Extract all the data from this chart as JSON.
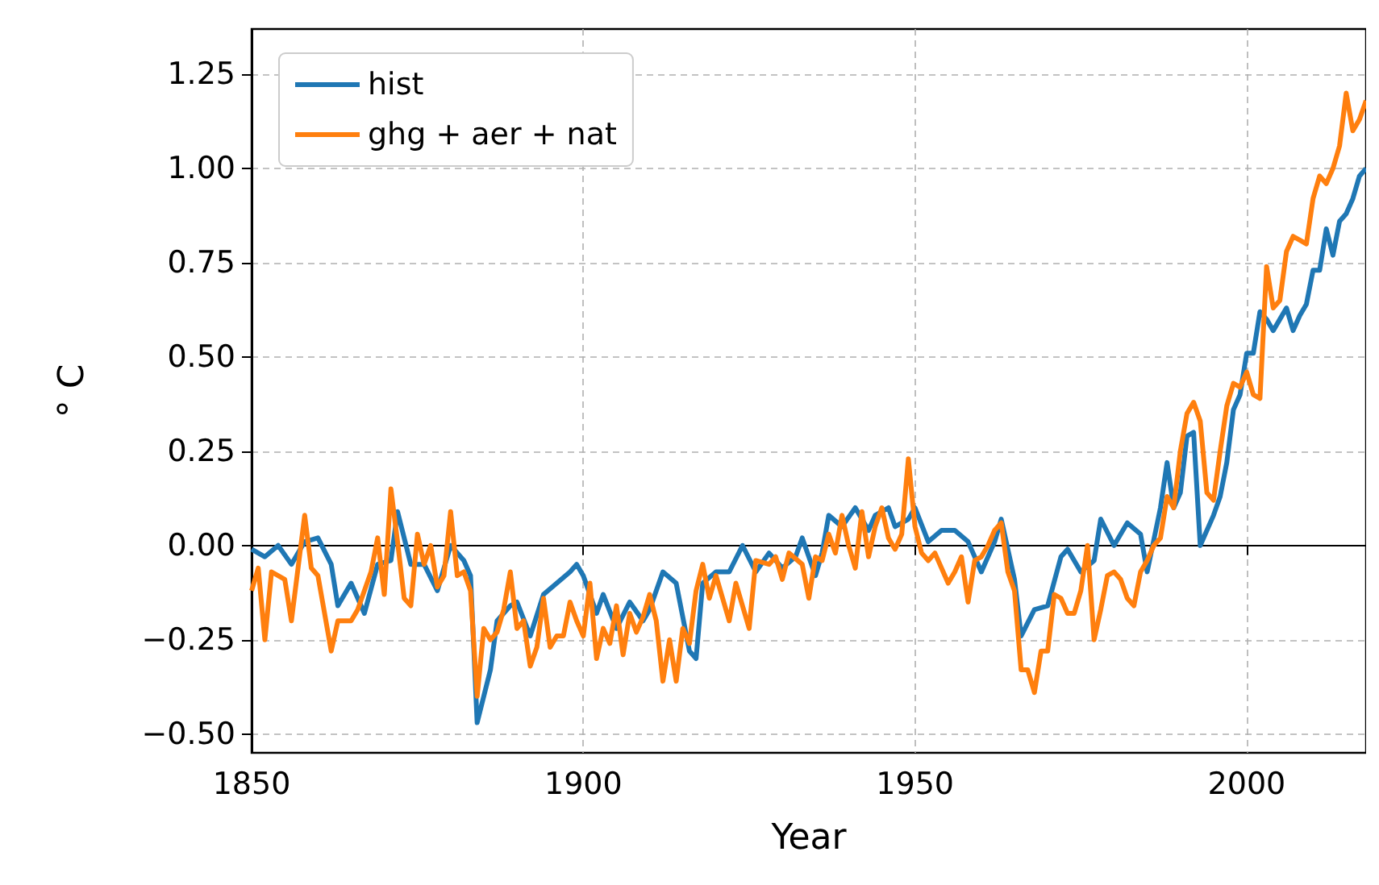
{
  "chart_data": {
    "type": "line",
    "xlabel": "Year",
    "ylabel": "° C",
    "xlim": [
      1850,
      2018
    ],
    "ylim": [
      -0.55,
      1.37
    ],
    "xticks": [
      1850,
      1900,
      1950,
      2000
    ],
    "yticks": [
      {
        "value": -0.5,
        "label": "−0.50"
      },
      {
        "value": -0.25,
        "label": "−0.25"
      },
      {
        "value": 0,
        "label": "0.00"
      },
      {
        "value": 0.25,
        "label": "0.25"
      },
      {
        "value": 0.5,
        "label": "0.50"
      },
      {
        "value": 0.75,
        "label": "0.75"
      },
      {
        "value": 1,
        "label": "1.00"
      },
      {
        "value": 1.25,
        "label": "1.25"
      }
    ],
    "grid": true,
    "legend": "top left",
    "line_style": "solid",
    "marker": "none",
    "series": [
      {
        "name": "hist",
        "color": "#1f77b4",
        "x": [
          1850,
          1852,
          1854,
          1856,
          1858,
          1860,
          1862,
          1863,
          1865,
          1867,
          1869,
          1871,
          1872,
          1874,
          1876,
          1878,
          1880,
          1882,
          1883,
          1884,
          1886,
          1887,
          1889,
          1890,
          1892,
          1894,
          1896,
          1898,
          1899,
          1900,
          1902,
          1903,
          1905,
          1907,
          1909,
          1910,
          1912,
          1914,
          1916,
          1917,
          1918,
          1920,
          1922,
          1924,
          1926,
          1928,
          1930,
          1932,
          1933,
          1935,
          1936,
          1937,
          1939,
          1941,
          1943,
          1944,
          1946,
          1947,
          1949,
          1950,
          1952,
          1954,
          1956,
          1958,
          1960,
          1962,
          1963,
          1965,
          1966,
          1968,
          1970,
          1972,
          1973,
          1975,
          1977,
          1978,
          1980,
          1982,
          1984,
          1985,
          1987,
          1988,
          1989,
          1990,
          1991,
          1992,
          1993,
          1995,
          1996,
          1997,
          1998,
          1999,
          2000,
          2001,
          2002,
          2003,
          2004,
          2005,
          2006,
          2007,
          2008,
          2009,
          2010,
          2011,
          2012,
          2013,
          2014,
          2015,
          2016,
          2017,
          2018
        ],
        "values": [
          -0.01,
          -0.03,
          0.0,
          -0.05,
          0.01,
          0.02,
          -0.05,
          -0.16,
          -0.1,
          -0.18,
          -0.05,
          -0.04,
          0.09,
          -0.05,
          -0.05,
          -0.12,
          0.0,
          -0.04,
          -0.08,
          -0.47,
          -0.33,
          -0.2,
          -0.16,
          -0.15,
          -0.24,
          -0.13,
          -0.1,
          -0.07,
          -0.05,
          -0.08,
          -0.18,
          -0.13,
          -0.22,
          -0.15,
          -0.2,
          -0.17,
          -0.07,
          -0.1,
          -0.28,
          -0.3,
          -0.1,
          -0.07,
          -0.07,
          0.0,
          -0.07,
          -0.02,
          -0.06,
          -0.03,
          0.02,
          -0.08,
          -0.02,
          0.08,
          0.05,
          0.1,
          0.04,
          0.08,
          0.1,
          0.05,
          0.07,
          0.1,
          0.01,
          0.04,
          0.04,
          0.01,
          -0.07,
          0.01,
          0.07,
          -0.09,
          -0.24,
          -0.17,
          -0.16,
          -0.03,
          -0.01,
          -0.07,
          -0.04,
          0.07,
          0.0,
          0.06,
          0.03,
          -0.07,
          0.1,
          0.22,
          0.1,
          0.14,
          0.29,
          0.3,
          0.0,
          0.08,
          0.13,
          0.22,
          0.36,
          0.4,
          0.51,
          0.51,
          0.62,
          0.6,
          0.57,
          0.6,
          0.63,
          0.57,
          0.61,
          0.64,
          0.73,
          0.73,
          0.84,
          0.77,
          0.86,
          0.88,
          0.92,
          0.98,
          1.0
        ]
      },
      {
        "name": "ghg + aer + nat",
        "color": "#ff7f0e",
        "x": [
          1850,
          1851,
          1852,
          1853,
          1855,
          1856,
          1858,
          1859,
          1860,
          1862,
          1863,
          1865,
          1866,
          1868,
          1869,
          1870,
          1871,
          1872,
          1873,
          1874,
          1875,
          1876,
          1877,
          1878,
          1879,
          1880,
          1881,
          1882,
          1883,
          1884,
          1885,
          1886,
          1887,
          1888,
          1889,
          1890,
          1891,
          1892,
          1893,
          1894,
          1895,
          1896,
          1897,
          1898,
          1899,
          1900,
          1901,
          1902,
          1903,
          1904,
          1905,
          1906,
          1907,
          1908,
          1909,
          1910,
          1911,
          1912,
          1913,
          1914,
          1915,
          1916,
          1917,
          1918,
          1919,
          1920,
          1922,
          1923,
          1925,
          1926,
          1928,
          1929,
          1930,
          1931,
          1933,
          1934,
          1935,
          1936,
          1937,
          1938,
          1939,
          1940,
          1941,
          1942,
          1943,
          1944,
          1945,
          1946,
          1947,
          1948,
          1949,
          1950,
          1951,
          1952,
          1953,
          1955,
          1956,
          1957,
          1958,
          1959,
          1960,
          1961,
          1962,
          1963,
          1964,
          1965,
          1966,
          1967,
          1968,
          1969,
          1970,
          1971,
          1972,
          1973,
          1974,
          1975,
          1976,
          1977,
          1978,
          1979,
          1980,
          1981,
          1982,
          1983,
          1984,
          1985,
          1986,
          1987,
          1988,
          1989,
          1990,
          1991,
          1992,
          1993,
          1994,
          1995,
          1996,
          1997,
          1998,
          1999,
          2000,
          2001,
          2002,
          2003,
          2004,
          2005,
          2006,
          2007,
          2008,
          2009,
          2010,
          2011,
          2012,
          2013,
          2014,
          2015,
          2016,
          2017,
          2018
        ],
        "values": [
          -0.12,
          -0.06,
          -0.25,
          -0.07,
          -0.09,
          -0.2,
          0.08,
          -0.06,
          -0.08,
          -0.28,
          -0.2,
          -0.2,
          -0.17,
          -0.07,
          0.02,
          -0.13,
          0.15,
          0.01,
          -0.14,
          -0.16,
          0.03,
          -0.05,
          0.0,
          -0.11,
          -0.08,
          0.09,
          -0.08,
          -0.07,
          -0.12,
          -0.4,
          -0.22,
          -0.25,
          -0.23,
          -0.17,
          -0.07,
          -0.22,
          -0.2,
          -0.32,
          -0.27,
          -0.14,
          -0.27,
          -0.24,
          -0.24,
          -0.15,
          -0.2,
          -0.24,
          -0.1,
          -0.3,
          -0.22,
          -0.26,
          -0.16,
          -0.29,
          -0.18,
          -0.23,
          -0.19,
          -0.13,
          -0.2,
          -0.36,
          -0.25,
          -0.36,
          -0.22,
          -0.26,
          -0.12,
          -0.05,
          -0.14,
          -0.08,
          -0.2,
          -0.1,
          -0.22,
          -0.04,
          -0.05,
          -0.03,
          -0.09,
          -0.02,
          -0.05,
          -0.14,
          -0.03,
          -0.04,
          0.03,
          -0.02,
          0.08,
          0.0,
          -0.06,
          0.09,
          -0.03,
          0.05,
          0.1,
          0.02,
          -0.01,
          0.03,
          0.23,
          0.05,
          -0.02,
          -0.04,
          -0.02,
          -0.1,
          -0.07,
          -0.03,
          -0.15,
          -0.04,
          -0.03,
          0.0,
          0.04,
          0.06,
          -0.07,
          -0.12,
          -0.33,
          -0.33,
          -0.39,
          -0.28,
          -0.28,
          -0.13,
          -0.14,
          -0.18,
          -0.18,
          -0.12,
          0.0,
          -0.25,
          -0.17,
          -0.08,
          -0.07,
          -0.09,
          -0.14,
          -0.16,
          -0.07,
          -0.04,
          0.0,
          0.02,
          0.13,
          0.1,
          0.25,
          0.35,
          0.38,
          0.33,
          0.14,
          0.12,
          0.25,
          0.37,
          0.43,
          0.42,
          0.46,
          0.4,
          0.39,
          0.74,
          0.63,
          0.65,
          0.78,
          0.82,
          0.81,
          0.8,
          0.92,
          0.98,
          0.96,
          1.0,
          1.06,
          1.2,
          1.1,
          1.13,
          1.18
        ]
      }
    ]
  }
}
